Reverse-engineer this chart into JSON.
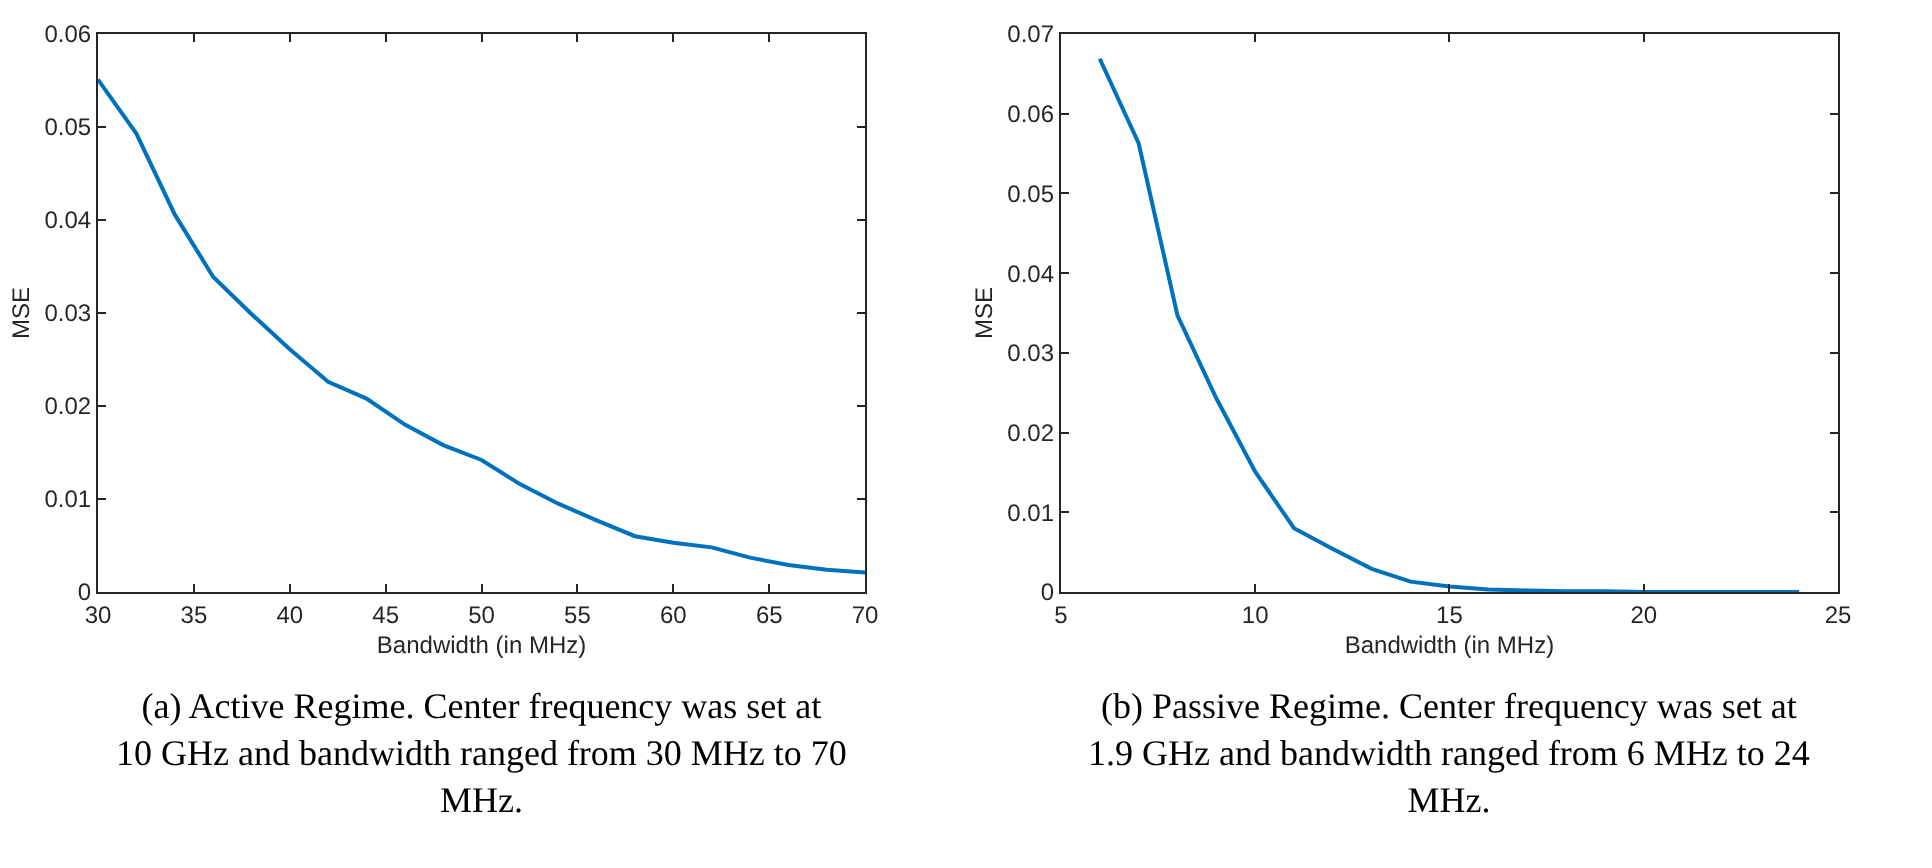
{
  "chart_data": [
    {
      "type": "line",
      "xlabel": "Bandwidth (in MHz)",
      "ylabel": "MSE",
      "x": [
        30,
        32,
        34,
        36,
        38,
        40,
        42,
        44,
        46,
        48,
        50,
        52,
        54,
        56,
        58,
        60,
        62,
        64,
        66,
        68,
        70
      ],
      "series": [
        {
          "color": "#0072bd",
          "values": [
            0.0551,
            0.0493,
            0.0406,
            0.0339,
            0.0299,
            0.0261,
            0.0226,
            0.0208,
            0.018,
            0.0158,
            0.0142,
            0.0116,
            0.0095,
            0.0077,
            0.006,
            0.0053,
            0.0048,
            0.0037,
            0.0029,
            0.0024,
            0.0021
          ]
        }
      ],
      "xlim": [
        30,
        70
      ],
      "xticks": [
        30,
        35,
        40,
        45,
        50,
        55,
        60,
        65,
        70
      ],
      "ylim": [
        0,
        0.06
      ],
      "yticks": [
        0,
        0.01,
        0.02,
        0.03,
        0.04,
        0.05,
        0.06
      ],
      "annotations": [
        "(a) Active Regime. Center frequency was set at 10 GHz and bandwidth ranged from 30 MHz to 70 MHz."
      ]
    },
    {
      "type": "line",
      "xlabel": "Bandwidth (in MHz)",
      "ylabel": "MSE",
      "x": [
        6,
        7,
        8,
        9,
        10,
        11,
        12,
        13,
        14,
        15,
        16,
        17,
        18,
        19,
        20,
        21,
        22,
        23,
        24
      ],
      "series": [
        {
          "color": "#0072bd",
          "values": [
            0.0669,
            0.0563,
            0.0347,
            0.0243,
            0.0151,
            0.008,
            0.0054,
            0.0029,
            0.0013,
            0.0007,
            0.0003,
            0.0002,
            0.0001,
            0.0001,
            0,
            0,
            0,
            0,
            0
          ]
        }
      ],
      "xlim": [
        5,
        25
      ],
      "xticks": [
        5,
        10,
        15,
        20,
        25
      ],
      "ylim": [
        0,
        0.07
      ],
      "yticks": [
        0,
        0.01,
        0.02,
        0.03,
        0.04,
        0.05,
        0.06,
        0.07
      ],
      "annotations": [
        "(b) Passive Regime. Center frequency was set at 1.9 GHz and bandwidth ranged from 6 MHz to 24 MHz."
      ]
    }
  ]
}
